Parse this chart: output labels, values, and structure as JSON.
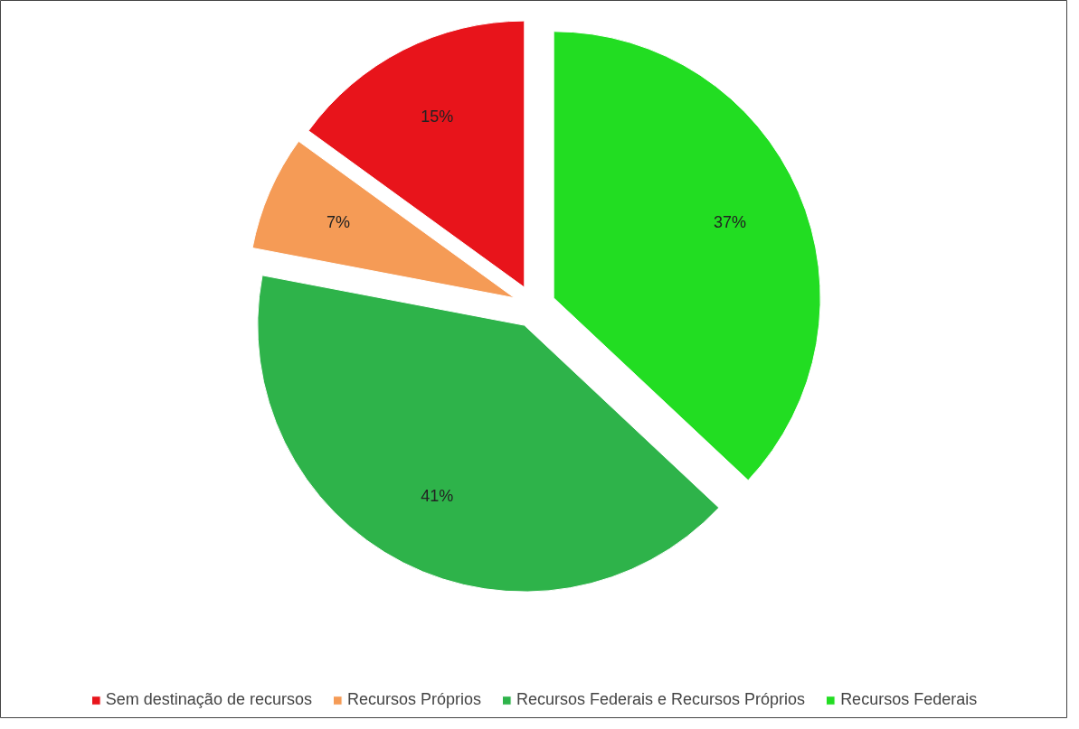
{
  "chart_data": {
    "type": "pie",
    "categories": [
      "Sem destinação de recursos",
      "Recursos Próprios",
      "Recursos Federais e Recursos Próprios",
      "Recursos Federais"
    ],
    "values": [
      15,
      7,
      41,
      37
    ],
    "colors": [
      "#e8141b",
      "#f59b56",
      "#2eb34a",
      "#22dd22"
    ],
    "value_labels": [
      "15%",
      "7%",
      "41%",
      "37%"
    ],
    "legend": "bottom"
  }
}
